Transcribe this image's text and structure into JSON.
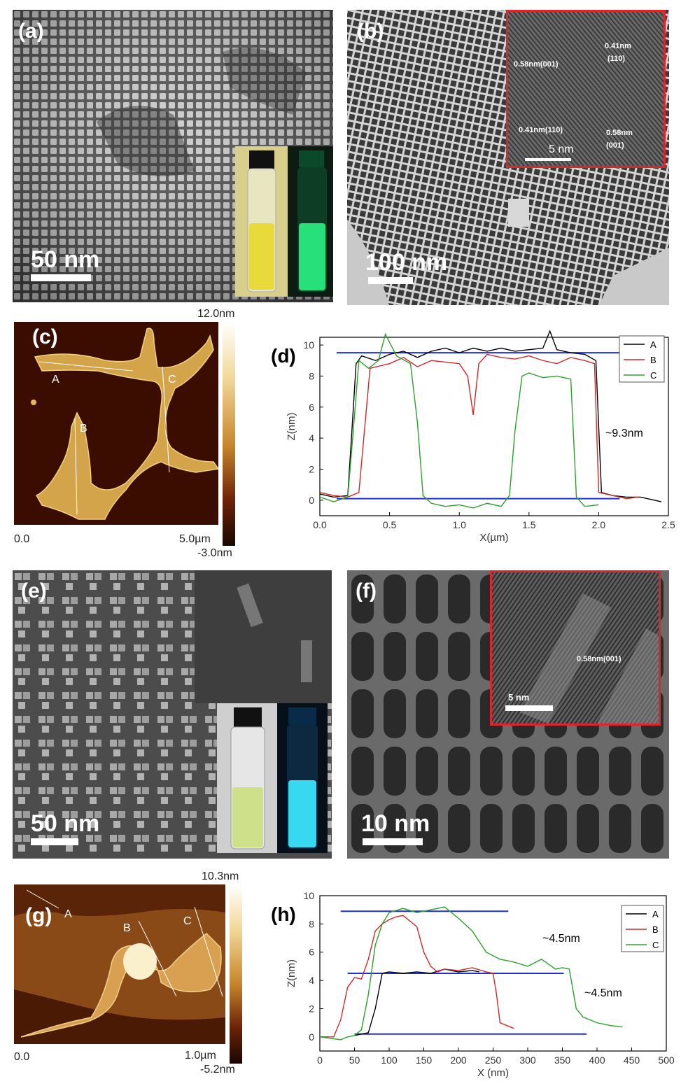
{
  "panels": {
    "a": {
      "label": "(a)",
      "scale": "50 nm"
    },
    "b": {
      "label": "(b)",
      "scale": "100 nm",
      "inset_labels": [
        "0.58nm(001)",
        "0.41nm",
        "(110)",
        "0.41nm(110)",
        "0.58nm",
        "(001)",
        "5 nm"
      ]
    },
    "c": {
      "label": "(c)",
      "profile_labels": [
        "A",
        "B",
        "C"
      ],
      "x_start": "0.0",
      "x_end": "5.0µm",
      "color_max": "12.0nm",
      "color_min": "-3.0nm"
    },
    "e": {
      "label": "(e)",
      "scale": "50 nm"
    },
    "f": {
      "label": "(f)",
      "scale": "10 nm",
      "inset_labels": [
        "0.58nm(001)",
        "5 nm"
      ]
    },
    "g": {
      "label": "(g)",
      "profile_labels": [
        "A",
        "B",
        "C"
      ],
      "x_start": "0.0",
      "x_end": "1.0µm",
      "color_max": "10.3nm",
      "color_min": "-5.2nm"
    }
  },
  "chart_data": [
    {
      "id": "d",
      "label": "(d)",
      "type": "line",
      "xlabel": "X(µm)",
      "ylabel": "Z(nm)",
      "xlim": [
        0,
        2.5
      ],
      "ylim": [
        -1,
        10.5
      ],
      "xticks": [
        "0.0",
        "0.5",
        "1.0",
        "1.5",
        "2.0",
        "2.5"
      ],
      "yticks": [
        "0",
        "2",
        "4",
        "6",
        "8",
        "10"
      ],
      "annotation": "~9.3nm",
      "legend_position": "top-right",
      "series": [
        {
          "name": "A",
          "color": "#000000",
          "x": [
            0,
            0.1,
            0.2,
            0.23,
            0.26,
            0.3,
            0.4,
            0.5,
            0.6,
            0.7,
            0.8,
            0.9,
            1.0,
            1.1,
            1.2,
            1.3,
            1.4,
            1.5,
            1.6,
            1.65,
            1.7,
            1.8,
            1.9,
            1.98,
            2.02,
            2.1,
            2.2,
            2.3,
            2.4,
            2.45
          ],
          "y": [
            0.4,
            0.2,
            0.3,
            4.5,
            8.8,
            9.3,
            9.0,
            9.4,
            9.6,
            9.2,
            9.6,
            9.8,
            9.5,
            9.8,
            9.6,
            9.8,
            9.6,
            9.7,
            9.8,
            10.9,
            9.7,
            9.5,
            9.4,
            9.0,
            0.5,
            0.3,
            0.2,
            0.2,
            0.0,
            -0.1
          ]
        },
        {
          "name": "B",
          "color": "#d62728",
          "x": [
            0,
            0.1,
            0.2,
            0.28,
            0.32,
            0.36,
            0.5,
            0.6,
            0.7,
            0.8,
            0.9,
            1.0,
            1.06,
            1.1,
            1.14,
            1.2,
            1.3,
            1.4,
            1.5,
            1.6,
            1.7,
            1.8,
            1.9,
            1.97,
            2.0,
            2.1,
            2.2,
            2.28
          ],
          "y": [
            0.5,
            0.3,
            0.2,
            0.5,
            4.5,
            8.5,
            8.8,
            9.2,
            8.6,
            9.0,
            8.9,
            8.8,
            8.0,
            5.5,
            8.8,
            9.4,
            9.2,
            9.1,
            9.3,
            9.0,
            8.8,
            9.2,
            9.0,
            8.8,
            0.5,
            0.3,
            0.1,
            0.2
          ]
        },
        {
          "name": "C",
          "color": "#2ca02c",
          "x": [
            0,
            0.1,
            0.2,
            0.24,
            0.28,
            0.35,
            0.42,
            0.47,
            0.55,
            0.65,
            0.7,
            0.74,
            0.8,
            0.9,
            1.0,
            1.1,
            1.2,
            1.3,
            1.36,
            1.4,
            1.45,
            1.5,
            1.6,
            1.7,
            1.8,
            1.84,
            1.9,
            2.0
          ],
          "y": [
            0.2,
            -0.1,
            0.2,
            4.5,
            9.0,
            8.5,
            9.0,
            10.7,
            9.3,
            8.8,
            5.0,
            0.3,
            -0.2,
            -0.4,
            -0.3,
            -0.5,
            -0.2,
            -0.4,
            0.3,
            4.5,
            8.0,
            8.2,
            7.9,
            8.0,
            7.8,
            0.2,
            -0.4,
            -0.3
          ]
        }
      ],
      "reference_lines": [
        9.5,
        0.1
      ]
    },
    {
      "id": "h",
      "label": "(h)",
      "type": "line",
      "xlabel": "X (nm)",
      "ylabel": "Z(nm)",
      "xlim": [
        0,
        500
      ],
      "ylim": [
        -1,
        10
      ],
      "xticks": [
        "0",
        "50",
        "100",
        "150",
        "200",
        "250",
        "300",
        "350",
        "400",
        "450",
        "500"
      ],
      "yticks": [
        "0",
        "2",
        "4",
        "6",
        "8",
        "10"
      ],
      "annotations": [
        "~4.5nm",
        "~4.5nm"
      ],
      "legend_position": "top-right",
      "series": [
        {
          "name": "A",
          "color": "#000000",
          "x": [
            50,
            60,
            70,
            80,
            90,
            100,
            120,
            140,
            160,
            180,
            200,
            220,
            230
          ],
          "y": [
            0.1,
            0.2,
            0.3,
            2.0,
            4.5,
            4.6,
            4.5,
            4.6,
            4.5,
            4.8,
            4.6,
            4.7,
            4.6
          ]
        },
        {
          "name": "B",
          "color": "#d62728",
          "x": [
            0,
            20,
            30,
            40,
            50,
            60,
            70,
            80,
            90,
            100,
            110,
            120,
            130,
            140,
            150,
            160,
            170,
            180,
            200,
            220,
            240,
            250,
            255,
            260,
            270,
            280
          ],
          "y": [
            0.0,
            0.0,
            1.2,
            3.5,
            4.2,
            4.1,
            5.5,
            7.5,
            8.0,
            8.3,
            8.5,
            8.6,
            8.2,
            7.8,
            6.0,
            5.0,
            4.6,
            4.8,
            4.7,
            4.9,
            4.6,
            4.5,
            3.0,
            1.0,
            0.8,
            0.6
          ]
        },
        {
          "name": "C",
          "color": "#2ca02c",
          "x": [
            0,
            30,
            40,
            50,
            60,
            70,
            80,
            90,
            100,
            120,
            140,
            160,
            180,
            200,
            220,
            240,
            260,
            280,
            300,
            320,
            340,
            350,
            360,
            370,
            380,
            400,
            420,
            437
          ],
          "y": [
            0.0,
            -0.2,
            0.0,
            0.1,
            0.5,
            3.0,
            6.5,
            8.0,
            8.8,
            9.1,
            8.8,
            9.0,
            9.2,
            8.4,
            7.5,
            6.0,
            5.5,
            5.3,
            5.0,
            5.5,
            4.8,
            4.9,
            4.8,
            2.0,
            1.4,
            1.0,
            0.8,
            0.7
          ]
        }
      ],
      "reference_lines": [
        8.9,
        4.5,
        0.2
      ]
    }
  ]
}
